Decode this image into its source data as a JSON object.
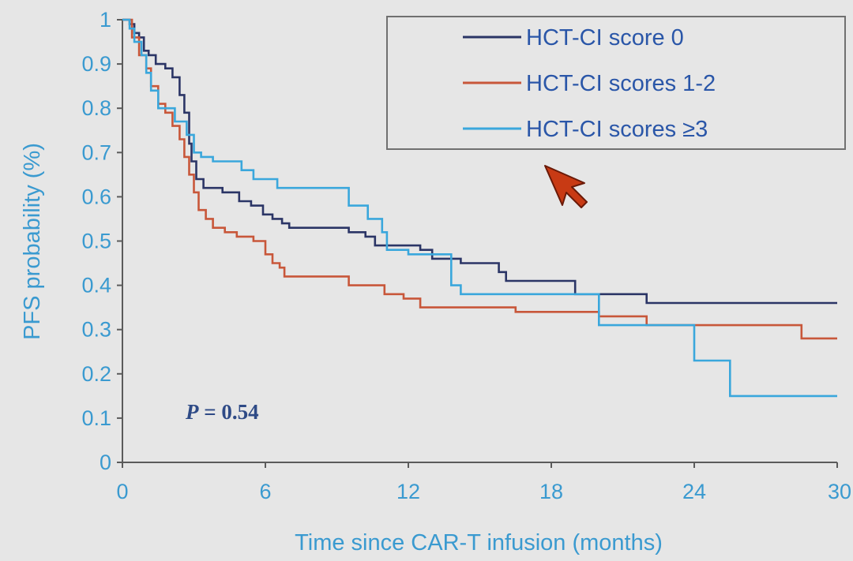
{
  "colors": {
    "background": "#e6e6e6",
    "axis_text": "#3a9ad0",
    "axis_line": "#5b5b5b",
    "legend_text": "#2a56a8",
    "pvalue_text": "#2e4a86",
    "cursor_fill": "#c83a14"
  },
  "chart_data": {
    "type": "line",
    "step": true,
    "xlabel": "Time since CAR-T infusion (months)",
    "ylabel": "PFS probability (%)",
    "xlim": [
      0,
      30
    ],
    "ylim": [
      0,
      1
    ],
    "x_ticks": [
      "0",
      "6",
      "12",
      "18",
      "24",
      "30"
    ],
    "y_ticks": [
      "0",
      "0.1",
      "0.2",
      "0.3",
      "0.4",
      "0.5",
      "0.6",
      "0.7",
      "0.8",
      "0.9",
      "1"
    ],
    "grid": false,
    "legend_position": "top-right",
    "annotation": {
      "prefix": "P",
      "text": " = 0.54"
    },
    "series": [
      {
        "name": "HCT-CI score 0",
        "color": "#2b3566",
        "x": [
          0,
          0.3,
          0.5,
          0.7,
          0.9,
          1.1,
          1.4,
          1.8,
          2.1,
          2.4,
          2.6,
          2.8,
          2.9,
          3.1,
          3.4,
          4.2,
          4.9,
          5.4,
          5.9,
          6.3,
          6.7,
          7.0,
          7.5,
          9.5,
          10.2,
          10.6,
          11.2,
          12.5,
          13.0,
          14.2,
          15.8,
          16.1,
          19.0,
          22.0,
          30
        ],
        "y": [
          1,
          0.99,
          0.97,
          0.96,
          0.93,
          0.92,
          0.9,
          0.89,
          0.87,
          0.83,
          0.79,
          0.72,
          0.68,
          0.64,
          0.62,
          0.61,
          0.59,
          0.58,
          0.56,
          0.55,
          0.54,
          0.53,
          0.53,
          0.52,
          0.51,
          0.49,
          0.49,
          0.48,
          0.46,
          0.45,
          0.43,
          0.41,
          0.38,
          0.36,
          0.36
        ]
      },
      {
        "name": "HCT-CI scores 1-2",
        "color": "#c8573a",
        "x": [
          0,
          0.4,
          0.7,
          1.0,
          1.2,
          1.5,
          1.8,
          2.1,
          2.4,
          2.6,
          2.8,
          3.0,
          3.2,
          3.5,
          3.8,
          4.3,
          4.8,
          5.5,
          6.0,
          6.3,
          6.6,
          6.8,
          7.2,
          8.0,
          9.5,
          11.0,
          11.8,
          12.5,
          15.0,
          16.5,
          20.0,
          22.0,
          28.5,
          30
        ],
        "y": [
          1,
          0.96,
          0.92,
          0.89,
          0.85,
          0.81,
          0.79,
          0.76,
          0.73,
          0.69,
          0.65,
          0.61,
          0.57,
          0.55,
          0.53,
          0.52,
          0.51,
          0.5,
          0.47,
          0.45,
          0.44,
          0.42,
          0.42,
          0.42,
          0.4,
          0.38,
          0.37,
          0.35,
          0.35,
          0.34,
          0.33,
          0.31,
          0.28,
          0.28
        ]
      },
      {
        "name": "HCT-CI scores ≥3",
        "color": "#3aa7dc",
        "x": [
          0,
          0.3,
          0.5,
          0.8,
          1.0,
          1.2,
          1.5,
          2.2,
          2.7,
          3.0,
          3.3,
          3.8,
          4.5,
          5.0,
          5.5,
          6.5,
          7.5,
          9.5,
          10.3,
          10.9,
          11.1,
          12.0,
          13.8,
          14.2,
          19.0,
          20.0,
          24.0,
          25.5,
          30
        ],
        "y": [
          1,
          0.98,
          0.95,
          0.92,
          0.88,
          0.84,
          0.8,
          0.77,
          0.74,
          0.7,
          0.69,
          0.68,
          0.68,
          0.66,
          0.64,
          0.62,
          0.62,
          0.58,
          0.55,
          0.52,
          0.48,
          0.47,
          0.4,
          0.38,
          0.38,
          0.31,
          0.23,
          0.15,
          0.15
        ]
      }
    ]
  }
}
